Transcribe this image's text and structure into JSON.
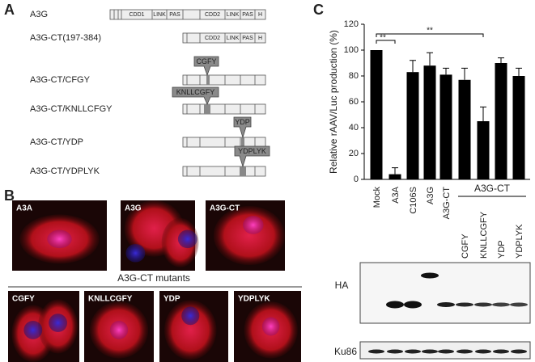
{
  "panel_a": {
    "label": "A",
    "constructs": [
      {
        "name": "A3G",
        "domains": [
          "CDD1",
          "LINK",
          "PAS",
          "CDD2",
          "LINK",
          "PAS",
          "H"
        ]
      },
      {
        "name": "A3G-CT(197-384)",
        "domains": [
          "CDD2",
          "LINK",
          "PAS",
          "H"
        ]
      },
      {
        "name": "A3G-CT/CFGY",
        "mutation": "CGFY"
      },
      {
        "name": "A3G-CT/KNLLCFGY",
        "mutation": "KNLLCGFY"
      },
      {
        "name": "A3G-CT/YDP",
        "mutation": "YDP"
      },
      {
        "name": "A3G-CT/YDPLYK",
        "mutation": "YDPLYK"
      }
    ]
  },
  "panel_b": {
    "label": "B",
    "top_images": [
      "A3A",
      "A3G",
      "A3G-CT"
    ],
    "group_title": "A3G-CT mutants",
    "bottom_images": [
      "CGFY",
      "KNLLCGFY",
      "YDP",
      "YDPLYK"
    ]
  },
  "panel_c": {
    "label": "C",
    "blot_lanes": [
      "CGFY",
      "KNLLCGFY",
      "YDP",
      "YDPLYK"
    ],
    "blot_rows": [
      "HA",
      "Ku86"
    ]
  },
  "chart_data": {
    "type": "bar",
    "ylabel": "Relative rAAV/Luc production (%)",
    "categories": [
      "Mock",
      "A3A",
      "C106S",
      "A3G",
      "A3G-CT",
      null,
      null,
      null,
      null
    ],
    "values": [
      100,
      4,
      83,
      88,
      81,
      77,
      45,
      90,
      80
    ],
    "errors": [
      null,
      5,
      9,
      10,
      5,
      9,
      11,
      4,
      6
    ],
    "color": "#000000",
    "group_label": "A3G-CT",
    "annotations": [
      "**",
      "**"
    ],
    "ylim": [
      0,
      120
    ],
    "yticks": [
      0,
      20,
      40,
      60,
      80,
      100,
      120
    ]
  }
}
